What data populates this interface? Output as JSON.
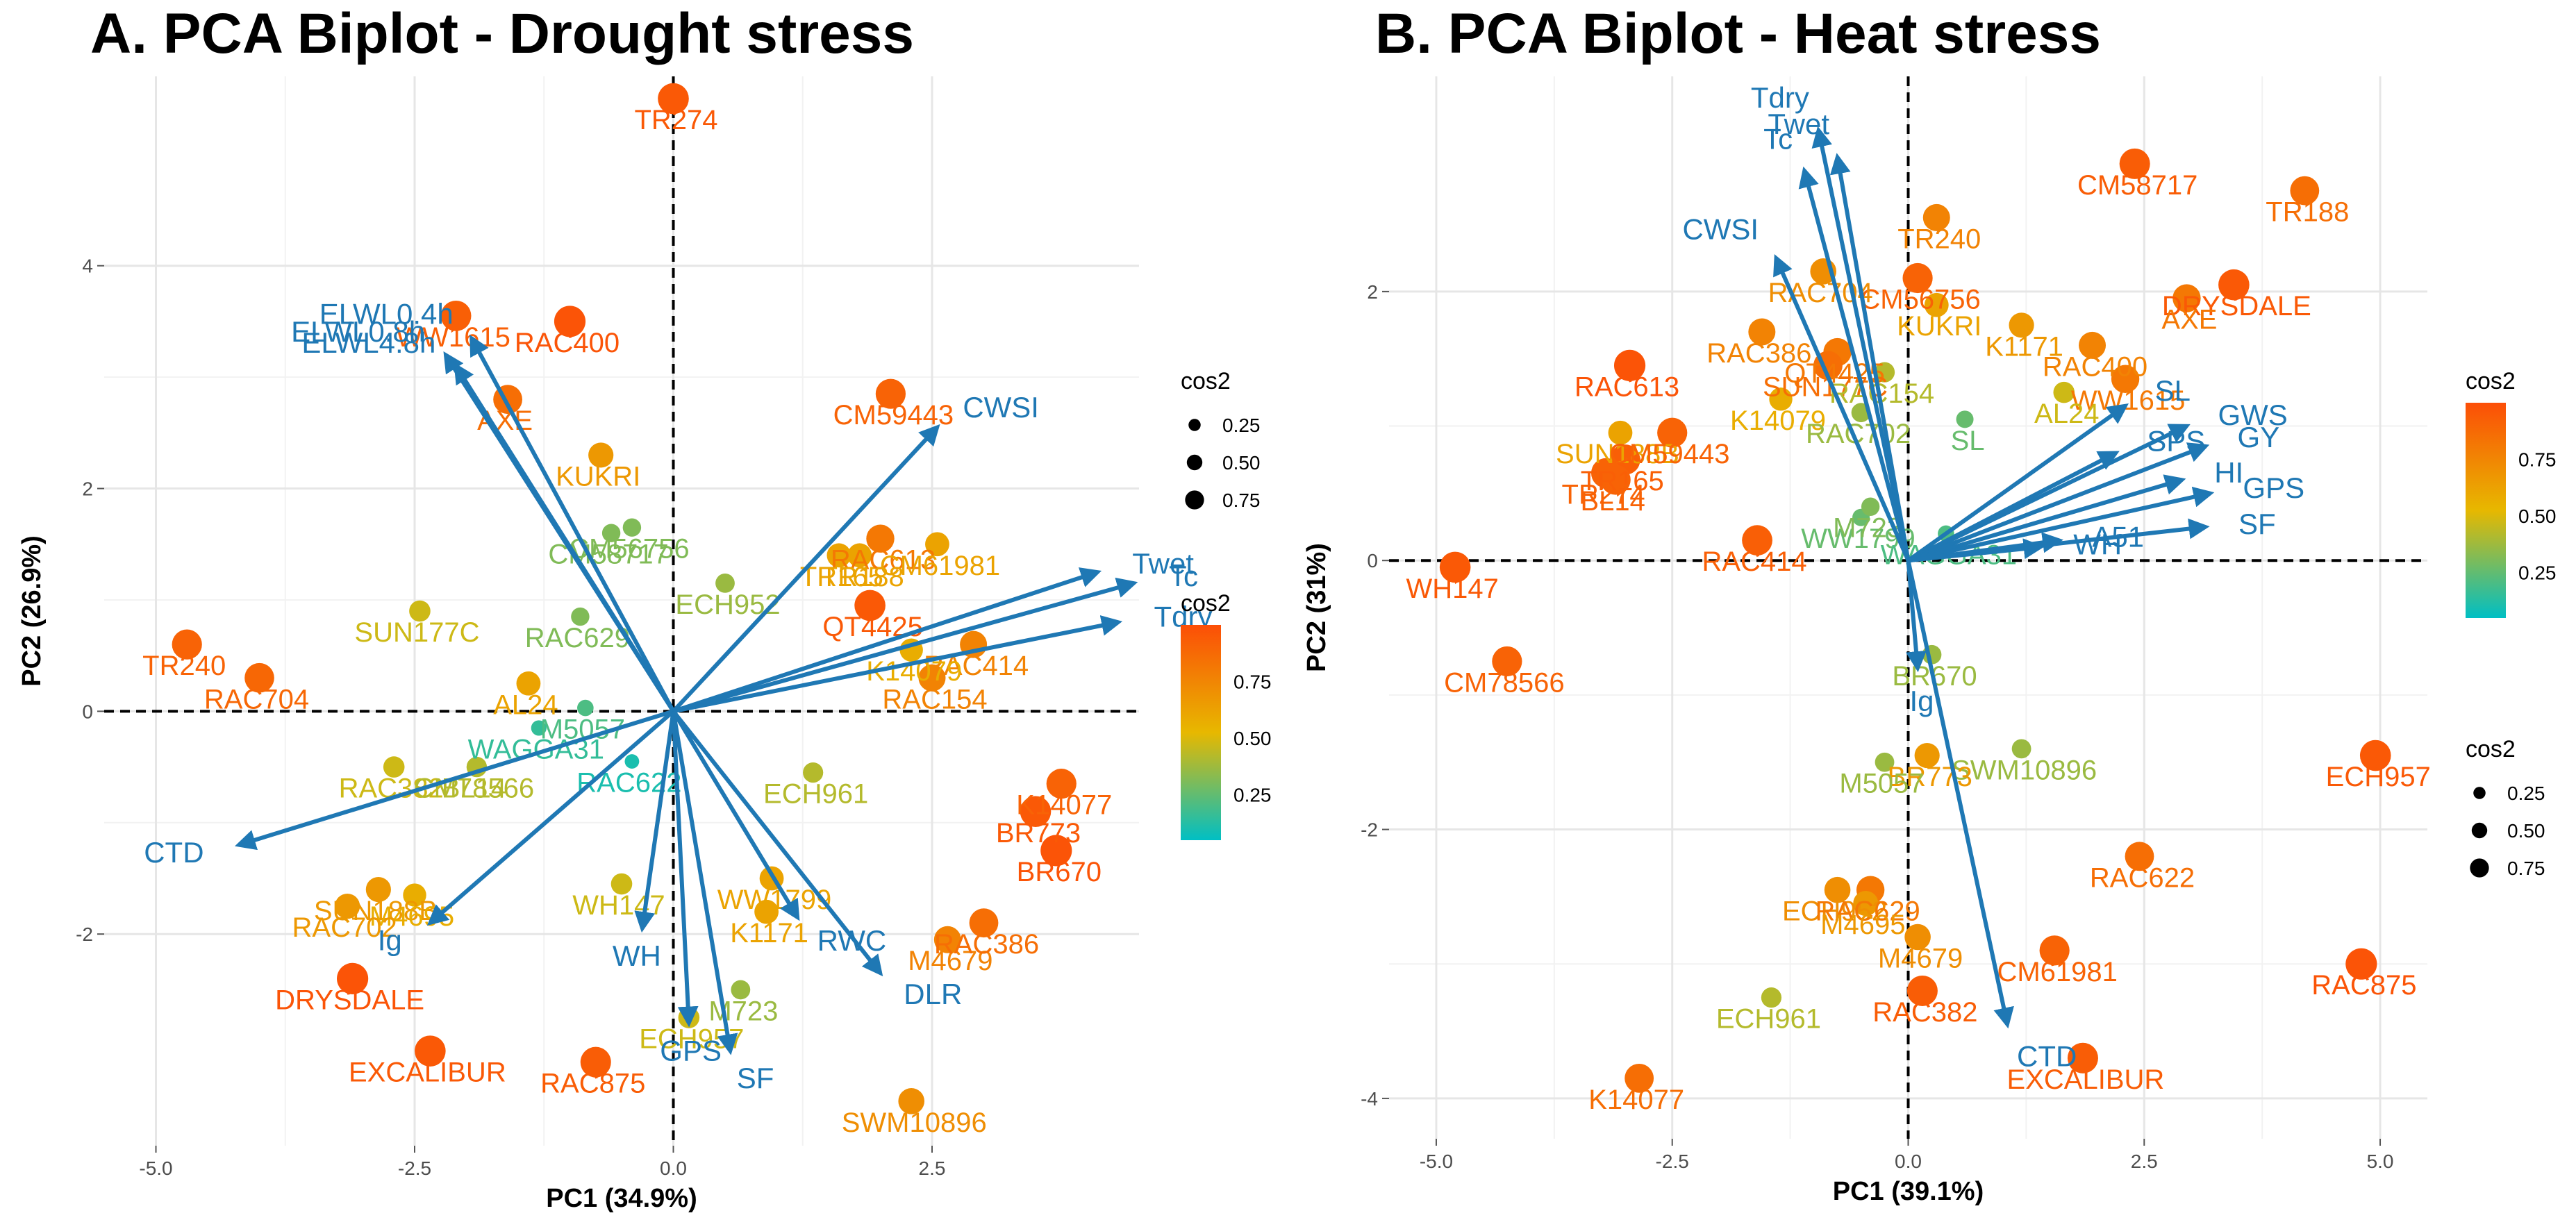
{
  "chart_data": [
    {
      "type": "scatter",
      "title": "A. PCA Biplot - Drought stress",
      "xlabel": "PC1 (34.9%)",
      "ylabel": "PC2 (26.9%)",
      "xlim": [
        -5.5,
        4.5
      ],
      "ylim": [
        -3.9,
        5.7
      ],
      "xticks": [
        -5.0,
        -2.5,
        0.0,
        2.5
      ],
      "xtick_labels": [
        "-5.0",
        "-2.5",
        "0.0",
        "2.5"
      ],
      "yticks": [
        -2,
        0,
        2,
        4
      ],
      "ytick_labels": [
        "-2",
        "0",
        "2",
        "4"
      ],
      "legend": {
        "size_title": "cos2",
        "size_labels": [
          "0.25",
          "0.50",
          "0.75"
        ],
        "color_title": "cos2",
        "color_labels": [
          "0.75",
          "0.50",
          "0.25"
        ],
        "position": "right"
      },
      "points": [
        {
          "label": "TR274",
          "x": 0.0,
          "y": 5.5,
          "cos2": 0.95
        },
        {
          "label": "WW1615",
          "x": -2.1,
          "y": 3.55,
          "cos2": 0.92
        },
        {
          "label": "RAC400",
          "x": -1.0,
          "y": 3.5,
          "cos2": 0.97
        },
        {
          "label": "AXE",
          "x": -1.6,
          "y": 2.8,
          "cos2": 0.85
        },
        {
          "label": "KUKRI",
          "x": -0.7,
          "y": 2.3,
          "cos2": 0.65
        },
        {
          "label": "CM59443",
          "x": 2.1,
          "y": 2.85,
          "cos2": 0.9
        },
        {
          "label": "CM56756",
          "x": -0.4,
          "y": 1.65,
          "cos2": 0.3
        },
        {
          "label": "CM58717",
          "x": -0.6,
          "y": 1.6,
          "cos2": 0.3
        },
        {
          "label": "SUN177C",
          "x": -2.45,
          "y": 0.9,
          "cos2": 0.45
        },
        {
          "label": "TR240",
          "x": -4.7,
          "y": 0.6,
          "cos2": 0.9
        },
        {
          "label": "RAC704",
          "x": -4.0,
          "y": 0.3,
          "cos2": 0.88
        },
        {
          "label": "RAC629",
          "x": -0.9,
          "y": 0.85,
          "cos2": 0.3
        },
        {
          "label": "ECH952",
          "x": 0.5,
          "y": 1.15,
          "cos2": 0.35
        },
        {
          "label": "AL24",
          "x": -1.4,
          "y": 0.25,
          "cos2": 0.6
        },
        {
          "label": "M5057",
          "x": -0.85,
          "y": 0.03,
          "cos2": 0.2
        },
        {
          "label": "WAGGA31",
          "x": -1.3,
          "y": -0.15,
          "cos2": 0.15
        },
        {
          "label": "RAC382",
          "x": -2.7,
          "y": -0.5,
          "cos2": 0.45
        },
        {
          "label": "BL14",
          "x": -1.9,
          "y": -0.5,
          "cos2": 0.4
        },
        {
          "label": "CM78566",
          "x": -1.9,
          "y": -0.5,
          "cos2": 0.4
        },
        {
          "label": "RAC622",
          "x": -0.4,
          "y": -0.45,
          "cos2": 0.1
        },
        {
          "label": "WH147",
          "x": -0.5,
          "y": -1.55,
          "cos2": 0.45
        },
        {
          "label": "TR165",
          "x": 1.6,
          "y": 1.4,
          "cos2": 0.6
        },
        {
          "label": "RAC613",
          "x": 2.0,
          "y": 1.55,
          "cos2": 0.8
        },
        {
          "label": "TR188",
          "x": 1.8,
          "y": 1.4,
          "cos2": 0.6
        },
        {
          "label": "CM61981",
          "x": 2.55,
          "y": 1.5,
          "cos2": 0.6
        },
        {
          "label": "QT4425",
          "x": 1.9,
          "y": 0.95,
          "cos2": 0.95
        },
        {
          "label": "RAC414",
          "x": 2.9,
          "y": 0.6,
          "cos2": 0.75
        },
        {
          "label": "K14079",
          "x": 2.3,
          "y": 0.55,
          "cos2": 0.55
        },
        {
          "label": "RAC154",
          "x": 2.5,
          "y": 0.3,
          "cos2": 0.75
        },
        {
          "label": "ECH961",
          "x": 1.35,
          "y": -0.55,
          "cos2": 0.4
        },
        {
          "label": "K14077",
          "x": 3.75,
          "y": -0.65,
          "cos2": 0.9
        },
        {
          "label": "BR773",
          "x": 3.5,
          "y": -0.9,
          "cos2": 0.95
        },
        {
          "label": "BR670",
          "x": 3.7,
          "y": -1.25,
          "cos2": 0.97
        },
        {
          "label": "WW1799",
          "x": 0.95,
          "y": -1.5,
          "cos2": 0.6
        },
        {
          "label": "K1171",
          "x": 0.9,
          "y": -1.8,
          "cos2": 0.6
        },
        {
          "label": "M4679",
          "x": 2.65,
          "y": -2.05,
          "cos2": 0.75
        },
        {
          "label": "RAC386",
          "x": 3.0,
          "y": -1.9,
          "cos2": 0.85
        },
        {
          "label": "M723",
          "x": 0.65,
          "y": -2.5,
          "cos2": 0.35
        },
        {
          "label": "ECH957",
          "x": 0.15,
          "y": -2.75,
          "cos2": 0.45
        },
        {
          "label": "SWM10896",
          "x": 2.3,
          "y": -3.5,
          "cos2": 0.7
        },
        {
          "label": "SUN188B",
          "x": -2.85,
          "y": -1.6,
          "cos2": 0.65
        },
        {
          "label": "M4695",
          "x": -2.5,
          "y": -1.65,
          "cos2": 0.55
        },
        {
          "label": "RAC702",
          "x": -3.15,
          "y": -1.75,
          "cos2": 0.65
        },
        {
          "label": "DRYSDALE",
          "x": -3.1,
          "y": -2.4,
          "cos2": 0.97
        },
        {
          "label": "EXCALIBUR",
          "x": -2.35,
          "y": -3.05,
          "cos2": 0.95
        },
        {
          "label": "RAC875",
          "x": -0.75,
          "y": -3.15,
          "cos2": 0.93
        }
      ],
      "variables": [
        {
          "label": "ELWL0.8h",
          "x": -2.2,
          "y": 3.2
        },
        {
          "label": "ELWL0.4h",
          "x": -1.95,
          "y": 3.35
        },
        {
          "label": "ELWL4.8h",
          "x": -2.1,
          "y": 3.1
        },
        {
          "label": "CWSI",
          "x": 2.55,
          "y": 2.55
        },
        {
          "label": "Twet",
          "x": 4.1,
          "y": 1.25
        },
        {
          "label": "Tc",
          "x": 4.45,
          "y": 1.15
        },
        {
          "label": "Tdry",
          "x": 4.3,
          "y": 0.8
        },
        {
          "label": "CTD",
          "x": -4.2,
          "y": -1.2
        },
        {
          "label": "Ig",
          "x": -2.35,
          "y": -1.9
        },
        {
          "label": "WH",
          "x": -0.3,
          "y": -1.95
        },
        {
          "label": "GPS",
          "x": 0.15,
          "y": -2.8
        },
        {
          "label": "SF",
          "x": 0.55,
          "y": -3.05
        },
        {
          "label": "RWC",
          "x": 1.2,
          "y": -1.85
        },
        {
          "label": "DLR",
          "x": 2.0,
          "y": -2.35
        }
      ]
    },
    {
      "type": "scatter",
      "title": "B. PCA Biplot - Heat stress",
      "xlabel": "PC1 (39.1%)",
      "ylabel": "PC2 (31%)",
      "xlim": [
        -5.5,
        5.5
      ],
      "ylim": [
        -4.3,
        3.6
      ],
      "xticks": [
        -5.0,
        -2.5,
        0.0,
        2.5,
        5.0
      ],
      "xtick_labels": [
        "-5.0",
        "-2.5",
        "0.0",
        "2.5",
        "5.0"
      ],
      "yticks": [
        -4,
        -2,
        0,
        2
      ],
      "ytick_labels": [
        "-4",
        "-2",
        "0",
        "2"
      ],
      "legend": {
        "size_title": "cos2",
        "size_labels": [
          "0.25",
          "0.50",
          "0.75"
        ],
        "color_title": "cos2",
        "color_labels": [
          "0.75",
          "0.50",
          "0.25"
        ],
        "position": "right"
      },
      "points": [
        {
          "label": "CM58717",
          "x": 2.4,
          "y": 2.95,
          "cos2": 0.93
        },
        {
          "label": "TR188",
          "x": 4.2,
          "y": 2.75,
          "cos2": 0.85
        },
        {
          "label": "TR240",
          "x": 0.3,
          "y": 2.55,
          "cos2": 0.75
        },
        {
          "label": "CM56756",
          "x": 0.1,
          "y": 2.1,
          "cos2": 0.9
        },
        {
          "label": "RAC704",
          "x": -0.9,
          "y": 2.15,
          "cos2": 0.7
        },
        {
          "label": "KUKRI",
          "x": 0.3,
          "y": 1.9,
          "cos2": 0.6
        },
        {
          "label": "RAC400",
          "x": 1.95,
          "y": 1.6,
          "cos2": 0.75
        },
        {
          "label": "DRYSDALE",
          "x": 3.45,
          "y": 2.05,
          "cos2": 0.95
        },
        {
          "label": "AXE",
          "x": 2.95,
          "y": 1.95,
          "cos2": 0.8
        },
        {
          "label": "RAC386",
          "x": -1.55,
          "y": 1.7,
          "cos2": 0.75
        },
        {
          "label": "QT4425",
          "x": -0.75,
          "y": 1.55,
          "cos2": 0.8
        },
        {
          "label": "K1171",
          "x": 1.2,
          "y": 1.75,
          "cos2": 0.65
        },
        {
          "label": "WW1615",
          "x": 2.3,
          "y": 1.35,
          "cos2": 0.8
        },
        {
          "label": "RAC613",
          "x": -2.95,
          "y": 1.45,
          "cos2": 0.97
        },
        {
          "label": "SUN177C",
          "x": -0.85,
          "y": 1.45,
          "cos2": 0.85
        },
        {
          "label": "RAC154",
          "x": -0.25,
          "y": 1.4,
          "cos2": 0.4
        },
        {
          "label": "AL24",
          "x": 1.65,
          "y": 1.25,
          "cos2": 0.45
        },
        {
          "label": "SL",
          "x": 0.6,
          "y": 1.05,
          "cos2": 0.25
        },
        {
          "label": "SUN188B",
          "x": -3.05,
          "y": 0.95,
          "cos2": 0.6
        },
        {
          "label": "CM59443",
          "x": -2.5,
          "y": 0.95,
          "cos2": 0.9
        },
        {
          "label": "TR165",
          "x": -3.0,
          "y": 0.75,
          "cos2": 0.92
        },
        {
          "label": "TR274",
          "x": -3.2,
          "y": 0.65,
          "cos2": 0.9
        },
        {
          "label": "BL14",
          "x": -3.1,
          "y": 0.6,
          "cos2": 0.9
        },
        {
          "label": "K14079",
          "x": -1.35,
          "y": 1.2,
          "cos2": 0.55
        },
        {
          "label": "RAC702",
          "x": -0.5,
          "y": 1.1,
          "cos2": 0.35
        },
        {
          "label": "WW1799",
          "x": -0.5,
          "y": 0.32,
          "cos2": 0.25
        },
        {
          "label": "M723",
          "x": -0.4,
          "y": 0.4,
          "cos2": 0.3
        },
        {
          "label": "WAGGA31",
          "x": 0.4,
          "y": 0.2,
          "cos2": 0.2
        },
        {
          "label": "RAC414",
          "x": -1.6,
          "y": 0.15,
          "cos2": 0.92
        },
        {
          "label": "WH147",
          "x": -4.8,
          "y": -0.05,
          "cos2": 0.95
        },
        {
          "label": "CM78566",
          "x": -4.25,
          "y": -0.75,
          "cos2": 0.9
        },
        {
          "label": "BR670",
          "x": 0.25,
          "y": -0.7,
          "cos2": 0.35
        },
        {
          "label": "SWM10896",
          "x": 1.2,
          "y": -1.4,
          "cos2": 0.35
        },
        {
          "label": "BR773",
          "x": 0.2,
          "y": -1.45,
          "cos2": 0.65
        },
        {
          "label": "M5057",
          "x": -0.25,
          "y": -1.5,
          "cos2": 0.35
        },
        {
          "label": "ECH957",
          "x": 4.95,
          "y": -1.45,
          "cos2": 0.95
        },
        {
          "label": "RAC622",
          "x": 2.45,
          "y": -2.2,
          "cos2": 0.85
        },
        {
          "label": "ECH952",
          "x": -0.75,
          "y": -2.45,
          "cos2": 0.7
        },
        {
          "label": "RAC629",
          "x": -0.4,
          "y": -2.45,
          "cos2": 0.8
        },
        {
          "label": "M4695",
          "x": -0.45,
          "y": -2.55,
          "cos2": 0.65
        },
        {
          "label": "M4679",
          "x": 0.1,
          "y": -2.8,
          "cos2": 0.7
        },
        {
          "label": "CM61981",
          "x": 1.55,
          "y": -2.9,
          "cos2": 0.9
        },
        {
          "label": "RAC875",
          "x": 4.8,
          "y": -3.0,
          "cos2": 0.97
        },
        {
          "label": "RAC382",
          "x": 0.15,
          "y": -3.2,
          "cos2": 0.93
        },
        {
          "label": "ECH961",
          "x": -1.45,
          "y": -3.25,
          "cos2": 0.4
        },
        {
          "label": "EXCALIBUR",
          "x": 1.85,
          "y": -3.7,
          "cos2": 0.93
        },
        {
          "label": "K14077",
          "x": -2.85,
          "y": -3.85,
          "cos2": 0.85
        }
      ],
      "variables": [
        {
          "label": "Tdry",
          "x": -0.95,
          "y": 3.2
        },
        {
          "label": "Twet",
          "x": -0.75,
          "y": 3.0
        },
        {
          "label": "Tc",
          "x": -1.1,
          "y": 2.9
        },
        {
          "label": "CWSI",
          "x": -1.4,
          "y": 2.25
        },
        {
          "label": "SL",
          "x": 2.3,
          "y": 1.15
        },
        {
          "label": "GWS",
          "x": 2.95,
          "y": 1.0
        },
        {
          "label": "SPS",
          "x": 2.2,
          "y": 0.8
        },
        {
          "label": "GY",
          "x": 3.15,
          "y": 0.85
        },
        {
          "label": "HI",
          "x": 2.9,
          "y": 0.6
        },
        {
          "label": "GPS",
          "x": 3.2,
          "y": 0.5
        },
        {
          "label": "SF",
          "x": 3.15,
          "y": 0.25
        },
        {
          "label": "WH",
          "x": 1.4,
          "y": 0.1
        },
        {
          "label": "A51",
          "x": 1.6,
          "y": 0.15
        },
        {
          "label": "Ig",
          "x": 0.1,
          "y": -0.8
        },
        {
          "label": "CTD",
          "x": 1.05,
          "y": -3.45
        }
      ]
    }
  ]
}
